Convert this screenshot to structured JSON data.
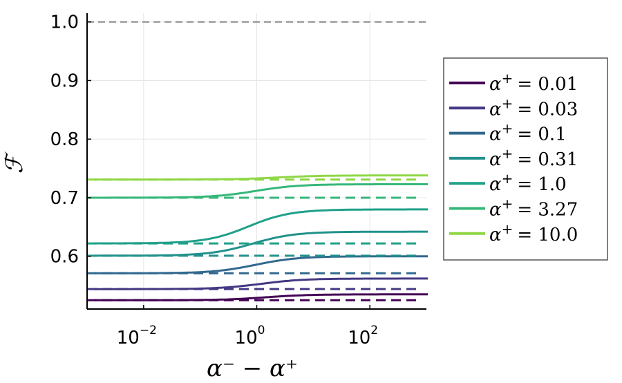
{
  "chart_data": {
    "type": "line",
    "xscale": "log",
    "xlim": [
      0.001,
      1000
    ],
    "ylim": [
      0.51,
      1.015
    ],
    "xlabel": "α⁻ − α⁺",
    "ylabel": "ℱ",
    "x_ticks": [
      {
        "value": 0.01,
        "base": "10",
        "exp": "−2"
      },
      {
        "value": 1,
        "base": "10",
        "exp": "0"
      },
      {
        "value": 100,
        "base": "10",
        "exp": "2"
      }
    ],
    "y_ticks": [
      {
        "value": 0.6,
        "label": "0.6"
      },
      {
        "value": 0.7,
        "label": "0.7"
      },
      {
        "value": 0.8,
        "label": "0.8"
      },
      {
        "value": 0.9,
        "label": "0.9"
      },
      {
        "value": 1.0,
        "label": "1.0"
      }
    ],
    "reference_line": {
      "y": 1.0,
      "style": "dashed",
      "color": "#888888"
    },
    "grid": true,
    "legend_position": "right",
    "series": [
      {
        "name": "α⁺ = 0.01",
        "alpha_label": "α",
        "value_label": "= 0.01",
        "color": "#440154",
        "start": 0.525,
        "end": 0.535,
        "mid": 1.2,
        "dashed": 0.525
      },
      {
        "name": "α⁺ = 0.03",
        "alpha_label": "α",
        "value_label": "= 0.03",
        "color": "#443983",
        "start": 0.544,
        "end": 0.562,
        "mid": 1.0,
        "dashed": 0.544
      },
      {
        "name": "α⁺ = 0.1",
        "alpha_label": "α",
        "value_label": "= 0.1",
        "color": "#31688e",
        "start": 0.571,
        "end": 0.6,
        "mid": 0.8,
        "dashed": 0.571
      },
      {
        "name": "α⁺ = 0.31",
        "alpha_label": "α",
        "value_label": "= 0.31",
        "color": "#21918c",
        "start": 0.601,
        "end": 0.642,
        "mid": 0.7,
        "dashed": 0.601
      },
      {
        "name": "α⁺ = 1.0",
        "alpha_label": "α",
        "value_label": "= 1.0",
        "color": "#1fa088",
        "start": 0.622,
        "end": 0.68,
        "mid": 0.6,
        "dashed": 0.622
      },
      {
        "name": "α⁺ = 3.27",
        "alpha_label": "α",
        "value_label": "= 3.27",
        "color": "#35b779",
        "start": 0.7,
        "end": 0.723,
        "mid": 0.8,
        "dashed": 0.7
      },
      {
        "name": "α⁺ = 10.0",
        "alpha_label": "α",
        "value_label": "= 10.0",
        "color": "#8fd744",
        "start": 0.731,
        "end": 0.738,
        "mid": 2.0,
        "dashed": 0.731
      }
    ]
  }
}
